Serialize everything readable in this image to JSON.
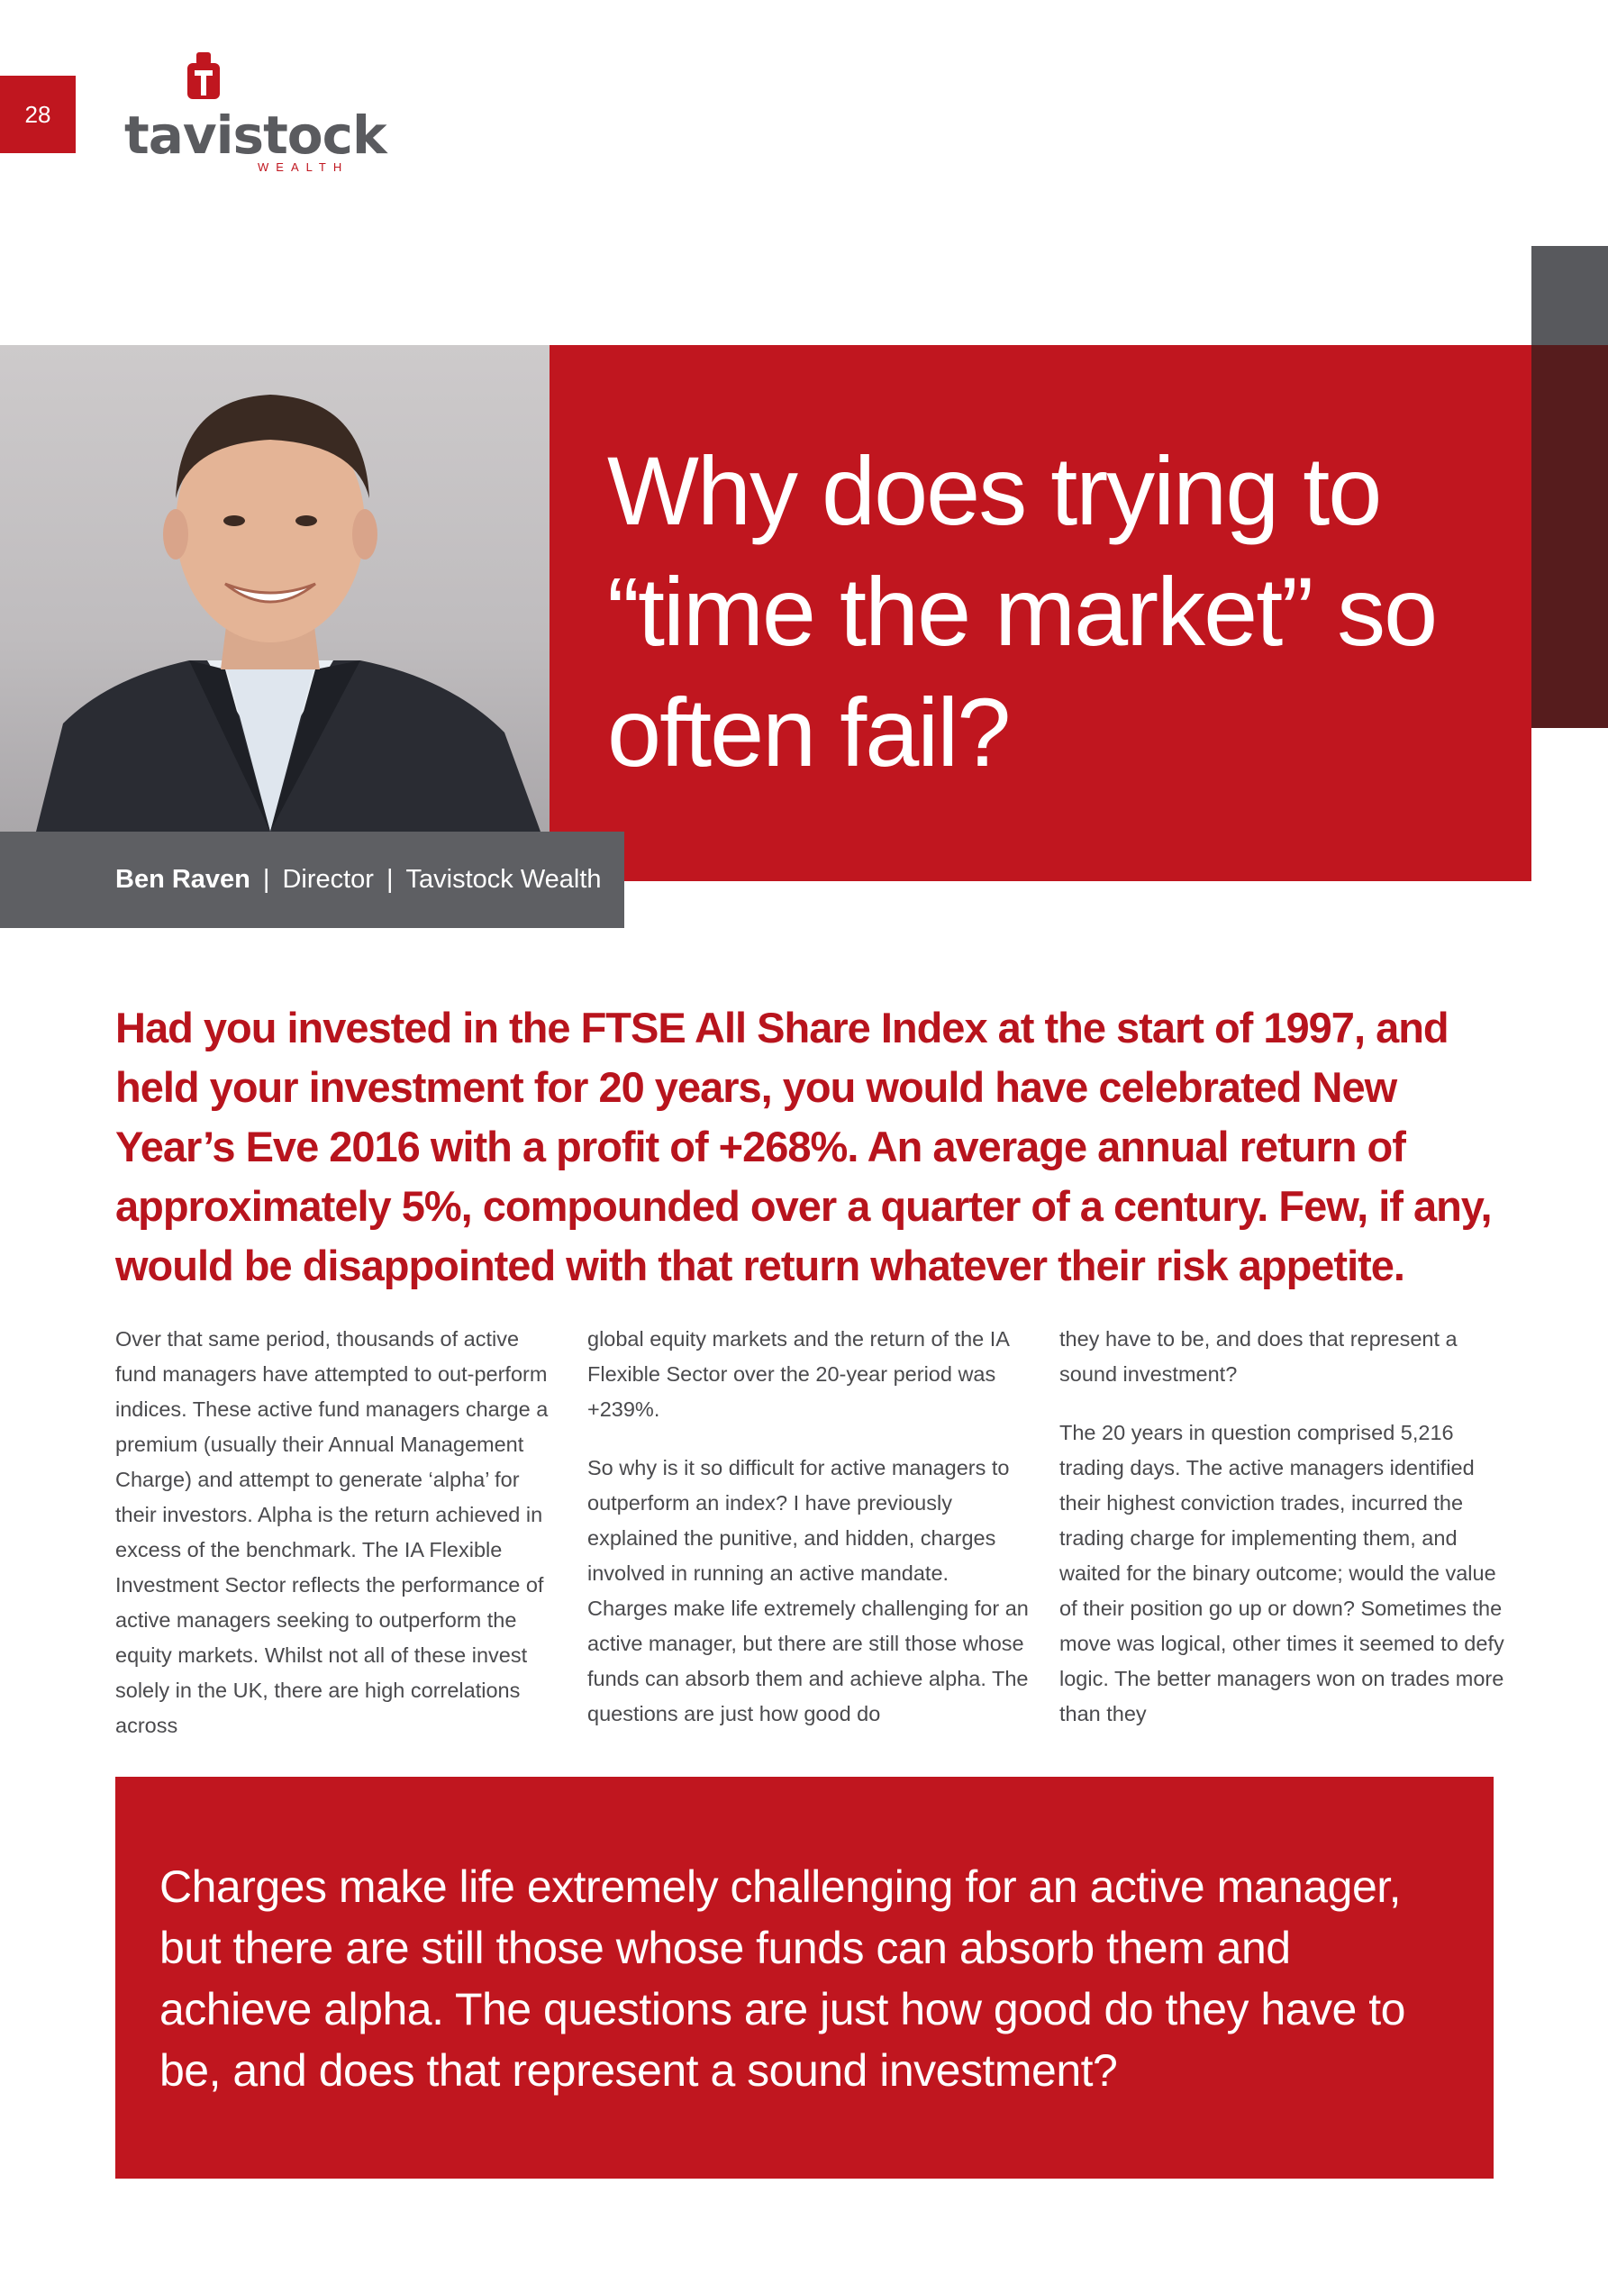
{
  "page": {
    "number": "28"
  },
  "brand": {
    "name": "tavistock",
    "tagline": "WEALTH"
  },
  "colors": {
    "brand_red": "#c0161f",
    "dark_red": "#561c1d",
    "gray": "#58595d",
    "text_gray": "#4a4a4d"
  },
  "headline": {
    "title": "Why does trying to “time the market” so often fail?"
  },
  "author": {
    "name": "Ben Raven",
    "role": "Director",
    "company": "Tavistock Wealth"
  },
  "intro": "Had you invested in the FTSE All Share Index at the start of 1997, and held your investment for 20 years, you would have celebrated New Year’s Eve 2016 with a profit of +268%. An average annual return of approximately 5%, compounded over a quarter of a century. Few, if any, would be disappointed with that return whatever their risk appetite.",
  "body": {
    "col1_p1": "Over that same period, thousands of active fund managers have attempted to out-perform indices. These active fund managers charge a premium (usually their Annual Management Charge) and attempt to generate ‘alpha’ for their investors. Alpha is the return achieved in excess of the benchmark. The IA Flexible Investment Sector reflects the performance of active managers seeking to outperform the equity markets. Whilst not all of these invest solely in the UK, there are high correlations across",
    "col2_p1": "global equity markets and the return of the IA Flexible Sector over the 20-year period was +239%.",
    "col2_p2": "So why is it so difficult for active managers to outperform an index? I have previously explained the punitive, and hidden, charges involved in running an active mandate. Charges make life extremely challenging for an active manager, but there are still those whose funds can absorb them and achieve alpha. The questions are just how good do",
    "col3_p1": "they have to be, and does that represent a sound investment?",
    "col3_p2": "The 20 years in question comprised 5,216 trading days. The active managers identified their highest conviction trades, incurred the trading charge for implementing them, and waited for the binary outcome; would the value of their position go up or down? Sometimes the move was logical, other times it seemed to defy logic. The better managers won on trades more than they"
  },
  "pull_quote": "Charges make life extremely challenging for an active manager, but there are still those whose funds can absorb them and achieve alpha. The questions are just how good do they have to be, and does that represent a sound investment?"
}
